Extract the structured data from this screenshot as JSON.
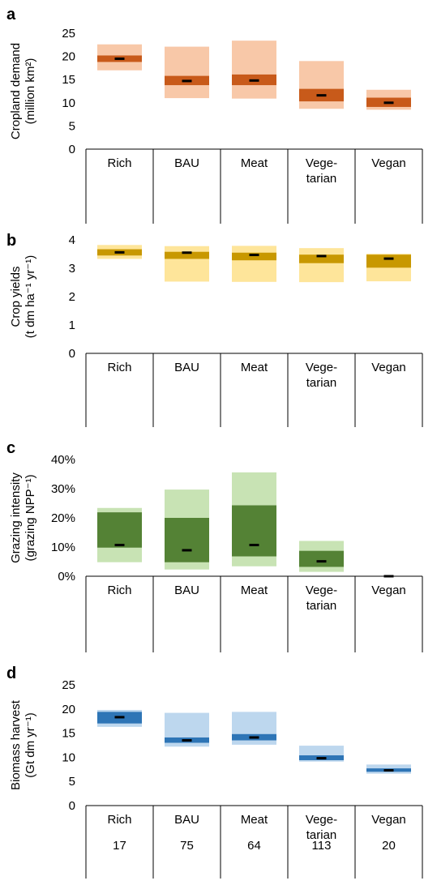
{
  "chart_data": [
    {
      "panel": "a",
      "type": "bar",
      "ylabel": [
        "Cropland demand",
        "(million km²)"
      ],
      "categories": [
        [
          "Rich"
        ],
        [
          "BAU"
        ],
        [
          "Meat"
        ],
        [
          "Vege-",
          "tarian"
        ],
        [
          "Vegan"
        ]
      ],
      "ylim": [
        0,
        25
      ],
      "yticks": [
        "0",
        "5",
        "10",
        "15",
        "20",
        "25"
      ],
      "ytick_values": [
        0,
        5,
        10,
        15,
        20,
        25
      ],
      "colors": {
        "outer": "#f8c8a8",
        "inner": "#c85a1a",
        "median": "#000000"
      },
      "outer_range": [
        [
          17.0,
          22.6
        ],
        [
          11.0,
          22.1
        ],
        [
          10.9,
          23.4
        ],
        [
          8.7,
          19.0
        ],
        [
          8.5,
          12.8
        ]
      ],
      "inner_range": [
        [
          18.8,
          20.2
        ],
        [
          13.8,
          15.8
        ],
        [
          13.8,
          16.1
        ],
        [
          10.3,
          13.0
        ],
        [
          9.1,
          11.1
        ]
      ],
      "median": [
        19.5,
        14.7,
        14.8,
        11.6,
        10.0
      ],
      "footer": null
    },
    {
      "panel": "b",
      "type": "bar",
      "ylabel": [
        "Crop yields",
        "(t dm ha⁻¹ yr⁻¹)"
      ],
      "categories": [
        [
          "Rich"
        ],
        [
          "BAU"
        ],
        [
          "Meat"
        ],
        [
          "Vege-",
          "tarian"
        ],
        [
          "Vegan"
        ]
      ],
      "ylim": [
        0,
        4
      ],
      "yticks": [
        "0",
        "1",
        "2",
        "3",
        "4"
      ],
      "ytick_values": [
        0,
        1,
        2,
        3,
        4
      ],
      "colors": {
        "outer": "#fee59a",
        "inner": "#c89800",
        "median": "#000000"
      },
      "outer_range": [
        [
          3.33,
          3.82
        ],
        [
          2.53,
          3.78
        ],
        [
          2.52,
          3.79
        ],
        [
          2.51,
          3.71
        ],
        [
          2.54,
          3.51
        ]
      ],
      "inner_range": [
        [
          3.45,
          3.67
        ],
        [
          3.33,
          3.58
        ],
        [
          3.28,
          3.55
        ],
        [
          3.18,
          3.48
        ],
        [
          3.02,
          3.48
        ]
      ],
      "median": [
        3.56,
        3.55,
        3.47,
        3.43,
        3.34
      ],
      "footer": null
    },
    {
      "panel": "c",
      "type": "bar",
      "ylabel": [
        "Grazing intensity",
        "(grazing NPP⁻¹)"
      ],
      "categories": [
        [
          "Rich"
        ],
        [
          "BAU"
        ],
        [
          "Meat"
        ],
        [
          "Vege-",
          "tarian"
        ],
        [
          "Vegan"
        ]
      ],
      "ylim": [
        0,
        40
      ],
      "yticks": [
        "0%",
        "10%",
        "20%",
        "30%",
        "40%"
      ],
      "ytick_values": [
        0,
        10,
        20,
        30,
        40
      ],
      "colors": {
        "outer": "#c8e3b4",
        "inner": "#548235",
        "median": "#000000"
      },
      "outer_range": [
        [
          4.8,
          23.4
        ],
        [
          2.3,
          29.7
        ],
        [
          3.4,
          35.6
        ],
        [
          1.5,
          12.1
        ],
        [
          0.0,
          0.0
        ]
      ],
      "inner_range": [
        [
          9.8,
          21.9
        ],
        [
          4.8,
          20.0
        ],
        [
          6.8,
          24.3
        ],
        [
          3.2,
          8.7
        ],
        [
          0.0,
          0.0
        ]
      ],
      "median": [
        10.7,
        8.9,
        10.7,
        5.1,
        0.0
      ],
      "footer": null
    },
    {
      "panel": "d",
      "type": "bar",
      "ylabel": [
        "Biomass harvest",
        "(Gt dm yr⁻¹)"
      ],
      "categories": [
        [
          "Rich"
        ],
        [
          "BAU"
        ],
        [
          "Meat"
        ],
        [
          "Vege-",
          "tarian"
        ],
        [
          "Vegan"
        ]
      ],
      "ylim": [
        0,
        25
      ],
      "yticks": [
        "0",
        "5",
        "10",
        "15",
        "20",
        "25"
      ],
      "ytick_values": [
        0,
        5,
        10,
        15,
        20,
        25
      ],
      "colors": {
        "outer": "#bdd7ee",
        "inner": "#2e75b6",
        "median": "#000000"
      },
      "outer_range": [
        [
          16.3,
          19.8
        ],
        [
          12.2,
          19.2
        ],
        [
          12.6,
          19.4
        ],
        [
          9.1,
          12.4
        ],
        [
          6.6,
          8.5
        ]
      ],
      "inner_range": [
        [
          17.0,
          19.4
        ],
        [
          13.0,
          14.1
        ],
        [
          13.5,
          14.8
        ],
        [
          9.4,
          10.4
        ],
        [
          7.0,
          7.7
        ]
      ],
      "median": [
        18.3,
        13.5,
        14.1,
        9.8,
        7.3
      ],
      "footer": [
        "17",
        "75",
        "64",
        "113",
        "20"
      ]
    }
  ]
}
